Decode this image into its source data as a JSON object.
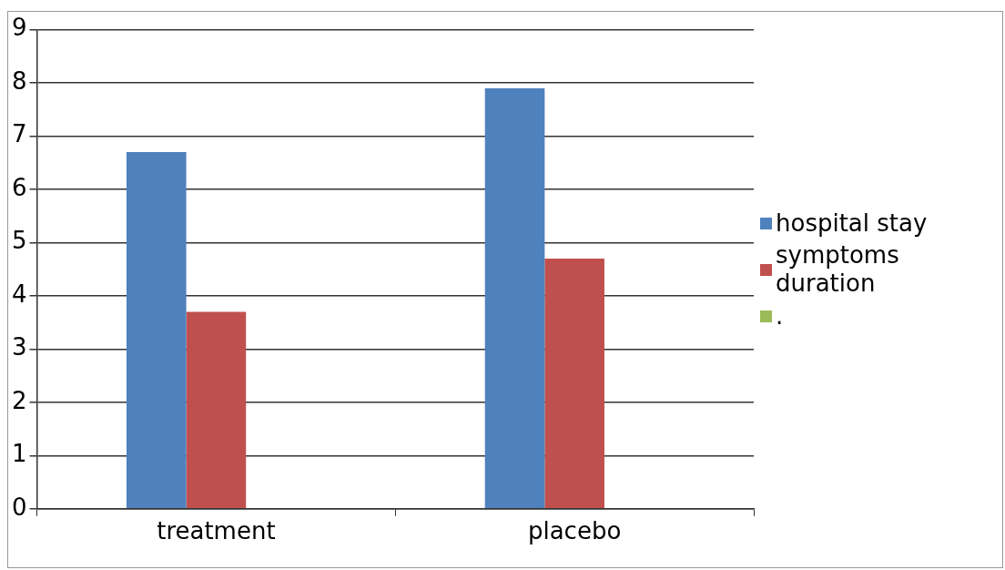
{
  "chart_data": {
    "type": "bar",
    "categories": [
      "treatment",
      "placebo"
    ],
    "series": [
      {
        "name": "hospital stay",
        "color": "#4f81bd",
        "values": [
          6.7,
          7.9
        ]
      },
      {
        "name": "symptoms duration",
        "color": "#c0504d",
        "values": [
          3.7,
          4.7
        ]
      },
      {
        "name": ".",
        "color": "#9bbb59",
        "values": [
          null,
          null
        ]
      }
    ],
    "ylim": [
      0,
      9
    ],
    "yticks": [
      0,
      1,
      2,
      3,
      4,
      5,
      6,
      7,
      8,
      9
    ],
    "grid": "y",
    "legend": "right"
  }
}
